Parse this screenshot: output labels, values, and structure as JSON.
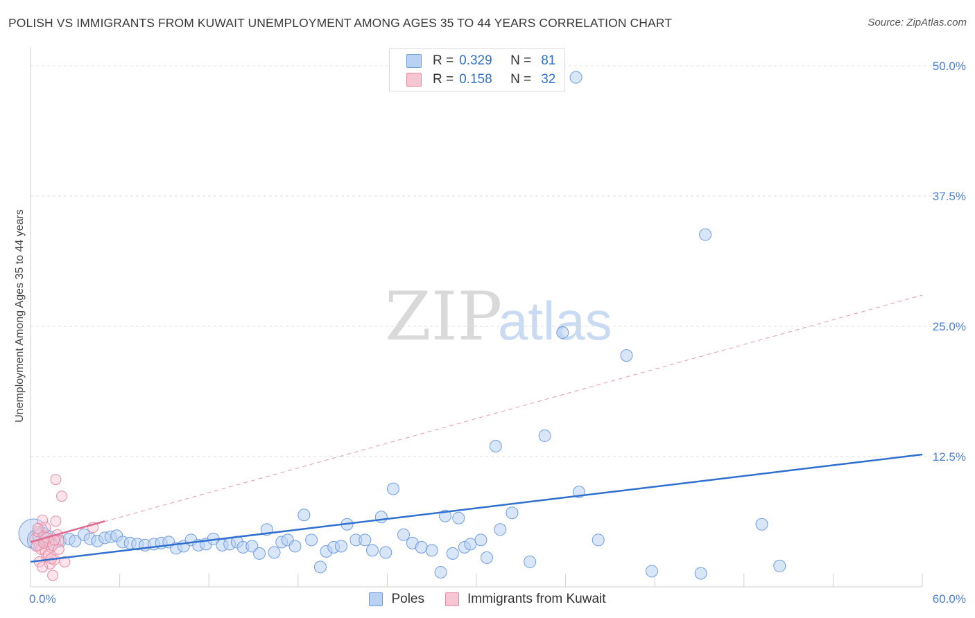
{
  "title": "POLISH VS IMMIGRANTS FROM KUWAIT UNEMPLOYMENT AMONG AGES 35 TO 44 YEARS CORRELATION CHART",
  "source": "Source: ZipAtlas.com",
  "watermark": {
    "zip": "ZIP",
    "atlas": "atlas"
  },
  "colors": {
    "poles_fill": "#b9d1f3",
    "poles_stroke": "#6f9de0",
    "poles_line": "#2f6fd0",
    "kuwait_fill": "#f7c6d3",
    "kuwait_stroke": "#e88aa6",
    "kuwait_line": "#e0688e",
    "axis_text": "#4a7fd0",
    "grid": "#dddddd"
  },
  "legend": [
    {
      "r_label": "R =",
      "r_value": "0.329",
      "n_label": "N =",
      "n_value": "81"
    },
    {
      "r_label": "R =",
      "r_value": "0.158",
      "n_label": "N =",
      "n_value": "32"
    }
  ],
  "bottom_legend": [
    {
      "label": "Poles"
    },
    {
      "label": "Immigrants from Kuwait"
    }
  ],
  "chart_data": {
    "type": "scatter",
    "title": "POLISH VS IMMIGRANTS FROM KUWAIT UNEMPLOYMENT AMONG AGES 35 TO 44 YEARS CORRELATION CHART",
    "xlabel": "",
    "ylabel": "Unemployment Among Ages 35 to 44 years",
    "xlim": [
      0,
      60
    ],
    "ylim": [
      0,
      51
    ],
    "x_tick_labels": [
      {
        "value": 0,
        "label": "0.0%"
      },
      {
        "value": 60,
        "label": "60.0%"
      }
    ],
    "y_tick_labels": [
      {
        "value": 12.5,
        "label": "12.5%"
      },
      {
        "value": 25.0,
        "label": "25.0%"
      },
      {
        "value": 37.5,
        "label": "37.5%"
      },
      {
        "value": 50.0,
        "label": "50.0%"
      }
    ],
    "grid": true,
    "series": [
      {
        "name": "Poles",
        "r": 0.329,
        "n": 81,
        "trend": {
          "x": [
            0,
            60
          ],
          "y": [
            2.4,
            12.7
          ],
          "style": "solid"
        },
        "points": [
          [
            0.2,
            5.1,
            2.5
          ],
          [
            0.5,
            4.5,
            1.8
          ],
          [
            0.8,
            4.8,
            1.6
          ],
          [
            1.2,
            4.6,
            1.4
          ],
          [
            1.6,
            4.3,
            1.1
          ],
          [
            2.0,
            4.4,
            1
          ],
          [
            2.6,
            4.6,
            1
          ],
          [
            3.0,
            4.4,
            1
          ],
          [
            3.6,
            5.0,
            1
          ],
          [
            4.0,
            4.6,
            1
          ],
          [
            4.5,
            4.4,
            1
          ],
          [
            5.0,
            4.7,
            1
          ],
          [
            5.4,
            4.8,
            1
          ],
          [
            5.8,
            4.9,
            1
          ],
          [
            6.2,
            4.3,
            1
          ],
          [
            6.7,
            4.2,
            1
          ],
          [
            7.2,
            4.1,
            1
          ],
          [
            7.7,
            4.0,
            1
          ],
          [
            8.3,
            4.1,
            1
          ],
          [
            8.8,
            4.2,
            1
          ],
          [
            9.3,
            4.3,
            1
          ],
          [
            9.8,
            3.7,
            1
          ],
          [
            10.3,
            3.9,
            1
          ],
          [
            10.8,
            4.5,
            1
          ],
          [
            11.3,
            4.0,
            1
          ],
          [
            11.8,
            4.1,
            1
          ],
          [
            12.3,
            4.6,
            1
          ],
          [
            12.9,
            4.0,
            1
          ],
          [
            13.4,
            4.1,
            1
          ],
          [
            13.9,
            4.3,
            1
          ],
          [
            14.3,
            3.8,
            1
          ],
          [
            14.9,
            3.9,
            1
          ],
          [
            15.4,
            3.2,
            1
          ],
          [
            15.9,
            5.5,
            1
          ],
          [
            16.4,
            3.3,
            1
          ],
          [
            16.9,
            4.3,
            1
          ],
          [
            17.3,
            4.5,
            1
          ],
          [
            17.8,
            3.9,
            1
          ],
          [
            18.4,
            6.9,
            1
          ],
          [
            18.9,
            4.5,
            1
          ],
          [
            19.5,
            1.9,
            1
          ],
          [
            19.9,
            3.4,
            1
          ],
          [
            20.4,
            3.8,
            1
          ],
          [
            20.9,
            3.9,
            1
          ],
          [
            21.3,
            6.0,
            1
          ],
          [
            21.9,
            4.5,
            1
          ],
          [
            22.5,
            4.5,
            1
          ],
          [
            23.0,
            3.5,
            1
          ],
          [
            23.6,
            6.7,
            1
          ],
          [
            23.9,
            3.3,
            1
          ],
          [
            24.4,
            9.4,
            1
          ],
          [
            25.1,
            5.0,
            1
          ],
          [
            25.7,
            4.2,
            1
          ],
          [
            26.3,
            3.8,
            1
          ],
          [
            27.0,
            3.5,
            1
          ],
          [
            27.6,
            1.4,
            1
          ],
          [
            27.9,
            6.8,
            1
          ],
          [
            28.4,
            3.2,
            1
          ],
          [
            28.8,
            6.6,
            1
          ],
          [
            29.2,
            3.8,
            1
          ],
          [
            29.6,
            4.1,
            1
          ],
          [
            30.3,
            4.5,
            1
          ],
          [
            30.7,
            2.8,
            1
          ],
          [
            31.3,
            13.5,
            1
          ],
          [
            31.6,
            5.5,
            1
          ],
          [
            32.4,
            7.1,
            1
          ],
          [
            33.6,
            2.4,
            1
          ],
          [
            34.6,
            14.5,
            1
          ],
          [
            35.8,
            24.4,
            1
          ],
          [
            36.9,
            9.1,
            1
          ],
          [
            38.2,
            4.5,
            1
          ],
          [
            40.1,
            22.2,
            1
          ],
          [
            41.8,
            1.5,
            1
          ],
          [
            45.4,
            33.8,
            1
          ],
          [
            45.1,
            1.3,
            1
          ],
          [
            49.2,
            6.0,
            1
          ],
          [
            50.4,
            2.0,
            1
          ],
          [
            36.7,
            48.9,
            1
          ]
        ]
      },
      {
        "name": "Immigrants from Kuwait",
        "r": 0.158,
        "n": 32,
        "trend": {
          "x": [
            0,
            5
          ],
          "y": [
            4.3,
            6.3
          ],
          "extended_x": [
            0,
            60
          ],
          "extended_y": [
            4.3,
            28.0
          ],
          "style": "solid+dashed"
        },
        "points": [
          [
            0.3,
            4.6
          ],
          [
            0.5,
            5.3
          ],
          [
            0.6,
            4.0
          ],
          [
            0.7,
            3.6
          ],
          [
            0.8,
            6.4
          ],
          [
            0.9,
            4.9
          ],
          [
            1.0,
            3.4
          ],
          [
            1.1,
            2.9
          ],
          [
            1.2,
            4.4
          ],
          [
            1.3,
            2.2
          ],
          [
            1.4,
            3.8
          ],
          [
            1.5,
            1.1
          ],
          [
            1.6,
            2.6
          ],
          [
            1.7,
            10.3
          ],
          [
            1.8,
            5.0
          ],
          [
            1.9,
            4.4
          ],
          [
            2.1,
            8.7
          ],
          [
            2.3,
            2.4
          ],
          [
            0.4,
            3.9
          ],
          [
            0.6,
            2.4
          ],
          [
            0.9,
            4.2
          ],
          [
            1.0,
            5.7
          ],
          [
            1.2,
            3.1
          ],
          [
            1.5,
            4.0
          ],
          [
            1.7,
            6.3
          ],
          [
            1.9,
            3.6
          ],
          [
            0.5,
            5.6
          ],
          [
            0.8,
            1.9
          ],
          [
            1.1,
            4.7
          ],
          [
            1.4,
            2.7
          ],
          [
            1.6,
            4.5
          ],
          [
            4.2,
            5.7
          ]
        ]
      }
    ]
  }
}
